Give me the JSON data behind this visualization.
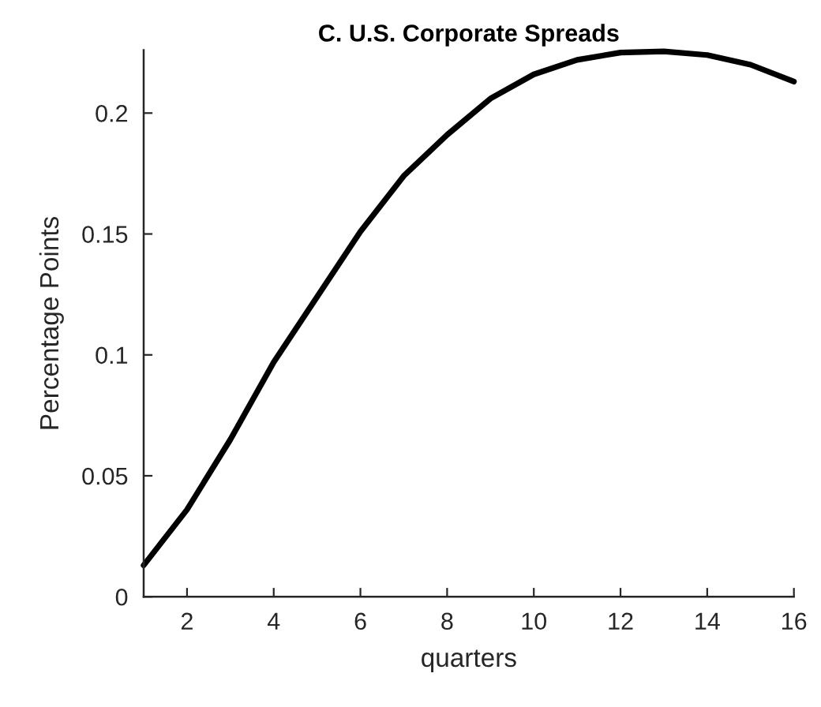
{
  "chart_data": {
    "type": "line",
    "title": "C. U.S. Corporate Spreads",
    "xlabel": "quarters",
    "ylabel": "Percentage Points",
    "x": [
      1,
      2,
      3,
      4,
      5,
      6,
      7,
      8,
      9,
      10,
      11,
      12,
      13,
      14,
      15,
      16
    ],
    "values": [
      0.013,
      0.036,
      0.065,
      0.097,
      0.124,
      0.151,
      0.174,
      0.191,
      0.206,
      0.216,
      0.222,
      0.225,
      0.2255,
      0.224,
      0.22,
      0.213
    ],
    "color": "#000000",
    "line_style": "solid",
    "marker": "none",
    "xlim": [
      1,
      16
    ],
    "ylim": [
      0,
      0.226
    ],
    "xticks": [
      2,
      4,
      6,
      8,
      10,
      12,
      14,
      16
    ],
    "yticks": [
      0,
      0.05,
      0.1,
      0.15,
      0.2
    ]
  }
}
